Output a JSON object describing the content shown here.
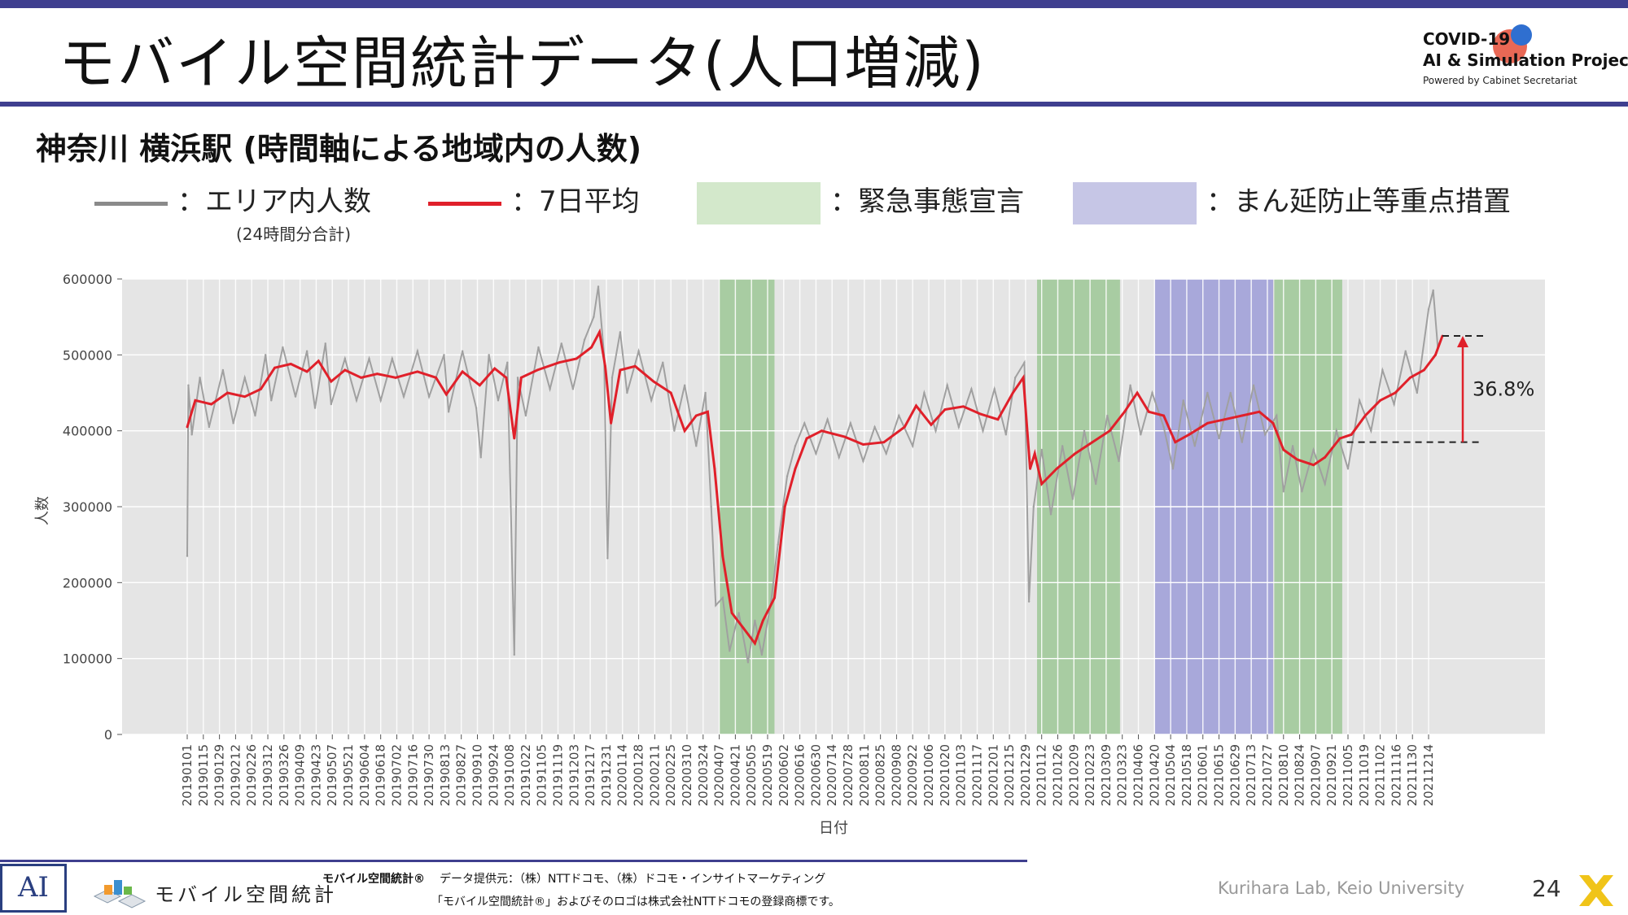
{
  "header": {
    "title": "モバイル空間統計データ(人口増減)",
    "logo": {
      "line1": "COVID-19",
      "line2": "AI & Simulation Project",
      "line3": "Powered by Cabinet Secretariat"
    }
  },
  "subtitle": "神奈川 横浜駅 (時間軸による地域内の人数)",
  "legend": {
    "daily_label": "：エリア内人数",
    "daily_sub": "(24時間分合計)",
    "avg_label": "：7日平均",
    "emergency_label": "：緊急事態宣言",
    "semi_label": "：まん延防止等重点措置"
  },
  "colors": {
    "header_bar": "#3f3f8f",
    "daily_line": "#a0a0a0",
    "avg_line": "#e0202a",
    "emergency_band": "#9dc896",
    "semi_band": "#9d9dd8",
    "plot_bg": "#e5e5e5",
    "grid": "#ffffff"
  },
  "chart_data": {
    "type": "line",
    "xlabel": "日付",
    "ylabel": "人数",
    "ylim": [
      0,
      600000
    ],
    "yticks": [
      0,
      100000,
      200000,
      300000,
      400000,
      500000,
      600000
    ],
    "ytick_labels": [
      "0",
      "100000",
      "200000",
      "300000",
      "400000",
      "500000",
      "600000"
    ],
    "x_start": "2019-01-01",
    "x_end": "2021-12-26",
    "xtick_labels": [
      "20190101",
      "20190115",
      "20190129",
      "20190212",
      "20190226",
      "20190312",
      "20190326",
      "20190409",
      "20190423",
      "20190507",
      "20190521",
      "20190604",
      "20190618",
      "20190702",
      "20190716",
      "20190730",
      "20190813",
      "20190827",
      "20190910",
      "20190924",
      "20191008",
      "20191022",
      "20191105",
      "20191119",
      "20191203",
      "20191217",
      "20191231",
      "20200114",
      "20200128",
      "20200211",
      "20200225",
      "20200310",
      "20200324",
      "20200407",
      "20200421",
      "20200505",
      "20200519",
      "20200602",
      "20200616",
      "20200630",
      "20200714",
      "20200728",
      "20200811",
      "20200825",
      "20200908",
      "20200922",
      "20201006",
      "20201020",
      "20201103",
      "20201117",
      "20201201",
      "20201215",
      "20201229",
      "20210112",
      "20210126",
      "20210209",
      "20210223",
      "20210309",
      "20210323",
      "20210406",
      "20210420",
      "20210504",
      "20210518",
      "20210601",
      "20210615",
      "20210629",
      "20210713",
      "20210727",
      "20210810",
      "20210824",
      "20210907",
      "20210921",
      "20211005",
      "20211019",
      "20211102",
      "20211116",
      "20211130",
      "20211214"
    ],
    "bands": [
      {
        "type": "emergency",
        "start": "2020-04-07",
        "end": "2020-05-25"
      },
      {
        "type": "emergency",
        "start": "2021-01-08",
        "end": "2021-03-21"
      },
      {
        "type": "semi",
        "start": "2021-04-20",
        "end": "2021-08-01"
      },
      {
        "type": "emergency",
        "start": "2021-08-02",
        "end": "2021-09-30"
      }
    ],
    "series": [
      {
        "name": "エリア内人数",
        "points": [
          [
            "2019-01-01",
            235000
          ],
          [
            "2019-01-02",
            460000
          ],
          [
            "2019-01-05",
            395000
          ],
          [
            "2019-01-12",
            470000
          ],
          [
            "2019-01-20",
            405000
          ],
          [
            "2019-02-01",
            480000
          ],
          [
            "2019-02-10",
            410000
          ],
          [
            "2019-02-20",
            470000
          ],
          [
            "2019-03-01",
            420000
          ],
          [
            "2019-03-10",
            500000
          ],
          [
            "2019-03-15",
            440000
          ],
          [
            "2019-03-25",
            510000
          ],
          [
            "2019-04-05",
            445000
          ],
          [
            "2019-04-15",
            505000
          ],
          [
            "2019-04-22",
            430000
          ],
          [
            "2019-05-01",
            515000
          ],
          [
            "2019-05-06",
            435000
          ],
          [
            "2019-05-18",
            495000
          ],
          [
            "2019-05-28",
            440000
          ],
          [
            "2019-06-08",
            495000
          ],
          [
            "2019-06-18",
            440000
          ],
          [
            "2019-06-28",
            495000
          ],
          [
            "2019-07-08",
            445000
          ],
          [
            "2019-07-20",
            505000
          ],
          [
            "2019-07-30",
            445000
          ],
          [
            "2019-08-12",
            500000
          ],
          [
            "2019-08-16",
            425000
          ],
          [
            "2019-08-28",
            505000
          ],
          [
            "2019-09-09",
            430000
          ],
          [
            "2019-09-13",
            365000
          ],
          [
            "2019-09-20",
            500000
          ],
          [
            "2019-09-28",
            440000
          ],
          [
            "2019-10-06",
            490000
          ],
          [
            "2019-10-12",
            105000
          ],
          [
            "2019-10-15",
            470000
          ],
          [
            "2019-10-22",
            420000
          ],
          [
            "2019-11-02",
            510000
          ],
          [
            "2019-11-12",
            455000
          ],
          [
            "2019-11-22",
            515000
          ],
          [
            "2019-12-02",
            455000
          ],
          [
            "2019-12-12",
            520000
          ],
          [
            "2019-12-20",
            550000
          ],
          [
            "2019-12-24",
            590000
          ],
          [
            "2019-12-29",
            500000
          ],
          [
            "2020-01-01",
            232000
          ],
          [
            "2020-01-05",
            470000
          ],
          [
            "2020-01-12",
            530000
          ],
          [
            "2020-01-18",
            450000
          ],
          [
            "2020-01-28",
            505000
          ],
          [
            "2020-02-08",
            440000
          ],
          [
            "2020-02-18",
            490000
          ],
          [
            "2020-02-28",
            400000
          ],
          [
            "2020-03-08",
            460000
          ],
          [
            "2020-03-18",
            380000
          ],
          [
            "2020-03-26",
            450000
          ],
          [
            "2020-03-31",
            300000
          ],
          [
            "2020-04-04",
            170000
          ],
          [
            "2020-04-10",
            180000
          ],
          [
            "2020-04-16",
            110000
          ],
          [
            "2020-04-24",
            160000
          ],
          [
            "2020-05-02",
            95000
          ],
          [
            "2020-05-08",
            150000
          ],
          [
            "2020-05-14",
            105000
          ],
          [
            "2020-05-22",
            175000
          ],
          [
            "2020-05-28",
            250000
          ],
          [
            "2020-06-05",
            340000
          ],
          [
            "2020-06-12",
            380000
          ],
          [
            "2020-06-20",
            410000
          ],
          [
            "2020-06-30",
            370000
          ],
          [
            "2020-07-10",
            415000
          ],
          [
            "2020-07-20",
            365000
          ],
          [
            "2020-07-30",
            410000
          ],
          [
            "2020-08-10",
            360000
          ],
          [
            "2020-08-20",
            405000
          ],
          [
            "2020-08-30",
            370000
          ],
          [
            "2020-09-10",
            420000
          ],
          [
            "2020-09-22",
            380000
          ],
          [
            "2020-10-02",
            450000
          ],
          [
            "2020-10-12",
            400000
          ],
          [
            "2020-10-22",
            460000
          ],
          [
            "2020-11-01",
            405000
          ],
          [
            "2020-11-12",
            455000
          ],
          [
            "2020-11-22",
            400000
          ],
          [
            "2020-12-02",
            455000
          ],
          [
            "2020-12-12",
            395000
          ],
          [
            "2020-12-20",
            470000
          ],
          [
            "2020-12-28",
            490000
          ],
          [
            "2021-01-01",
            175000
          ],
          [
            "2021-01-05",
            300000
          ],
          [
            "2021-01-12",
            375000
          ],
          [
            "2021-01-20",
            290000
          ],
          [
            "2021-01-30",
            380000
          ],
          [
            "2021-02-08",
            310000
          ],
          [
            "2021-02-18",
            400000
          ],
          [
            "2021-02-28",
            330000
          ],
          [
            "2021-03-10",
            420000
          ],
          [
            "2021-03-20",
            360000
          ],
          [
            "2021-03-30",
            460000
          ],
          [
            "2021-04-08",
            395000
          ],
          [
            "2021-04-18",
            450000
          ],
          [
            "2021-04-28",
            405000
          ],
          [
            "2021-05-06",
            350000
          ],
          [
            "2021-05-15",
            440000
          ],
          [
            "2021-05-25",
            380000
          ],
          [
            "2021-06-05",
            450000
          ],
          [
            "2021-06-15",
            390000
          ],
          [
            "2021-06-25",
            450000
          ],
          [
            "2021-07-05",
            385000
          ],
          [
            "2021-07-15",
            460000
          ],
          [
            "2021-07-25",
            395000
          ],
          [
            "2021-08-04",
            420000
          ],
          [
            "2021-08-10",
            320000
          ],
          [
            "2021-08-18",
            380000
          ],
          [
            "2021-08-26",
            320000
          ],
          [
            "2021-09-05",
            375000
          ],
          [
            "2021-09-15",
            330000
          ],
          [
            "2021-09-25",
            400000
          ],
          [
            "2021-10-05",
            350000
          ],
          [
            "2021-10-15",
            440000
          ],
          [
            "2021-10-25",
            400000
          ],
          [
            "2021-11-04",
            480000
          ],
          [
            "2021-11-14",
            435000
          ],
          [
            "2021-11-24",
            505000
          ],
          [
            "2021-12-04",
            450000
          ],
          [
            "2021-12-14",
            560000
          ],
          [
            "2021-12-18",
            585000
          ],
          [
            "2021-12-22",
            510000
          ],
          [
            "2021-12-26",
            525000
          ]
        ]
      },
      {
        "name": "7日平均",
        "points": [
          [
            "2019-01-01",
            405000
          ],
          [
            "2019-01-08",
            440000
          ],
          [
            "2019-01-22",
            435000
          ],
          [
            "2019-02-05",
            450000
          ],
          [
            "2019-02-20",
            445000
          ],
          [
            "2019-03-06",
            455000
          ],
          [
            "2019-03-18",
            483000
          ],
          [
            "2019-04-01",
            488000
          ],
          [
            "2019-04-15",
            478000
          ],
          [
            "2019-04-25",
            492000
          ],
          [
            "2019-05-06",
            465000
          ],
          [
            "2019-05-18",
            480000
          ],
          [
            "2019-06-01",
            470000
          ],
          [
            "2019-06-15",
            475000
          ],
          [
            "2019-07-01",
            470000
          ],
          [
            "2019-07-20",
            478000
          ],
          [
            "2019-08-05",
            470000
          ],
          [
            "2019-08-14",
            448000
          ],
          [
            "2019-08-28",
            478000
          ],
          [
            "2019-09-12",
            460000
          ],
          [
            "2019-09-25",
            482000
          ],
          [
            "2019-10-05",
            470000
          ],
          [
            "2019-10-12",
            390000
          ],
          [
            "2019-10-18",
            470000
          ],
          [
            "2019-11-01",
            480000
          ],
          [
            "2019-11-20",
            490000
          ],
          [
            "2019-12-05",
            495000
          ],
          [
            "2019-12-18",
            510000
          ],
          [
            "2019-12-25",
            530000
          ],
          [
            "2019-12-30",
            485000
          ],
          [
            "2020-01-04",
            410000
          ],
          [
            "2020-01-12",
            480000
          ],
          [
            "2020-01-25",
            485000
          ],
          [
            "2020-02-10",
            465000
          ],
          [
            "2020-02-25",
            450000
          ],
          [
            "2020-03-08",
            400000
          ],
          [
            "2020-03-18",
            420000
          ],
          [
            "2020-03-28",
            425000
          ],
          [
            "2020-04-03",
            350000
          ],
          [
            "2020-04-10",
            235000
          ],
          [
            "2020-04-18",
            160000
          ],
          [
            "2020-04-28",
            140000
          ],
          [
            "2020-05-08",
            120000
          ],
          [
            "2020-05-15",
            150000
          ],
          [
            "2020-05-25",
            180000
          ],
          [
            "2020-06-03",
            300000
          ],
          [
            "2020-06-12",
            350000
          ],
          [
            "2020-06-22",
            390000
          ],
          [
            "2020-07-05",
            400000
          ],
          [
            "2020-07-25",
            392000
          ],
          [
            "2020-08-10",
            382000
          ],
          [
            "2020-08-28",
            385000
          ],
          [
            "2020-09-15",
            405000
          ],
          [
            "2020-09-25",
            433000
          ],
          [
            "2020-10-08",
            408000
          ],
          [
            "2020-10-20",
            428000
          ],
          [
            "2020-11-05",
            432000
          ],
          [
            "2020-11-20",
            422000
          ],
          [
            "2020-12-05",
            415000
          ],
          [
            "2020-12-18",
            450000
          ],
          [
            "2020-12-27",
            470000
          ],
          [
            "2021-01-02",
            350000
          ],
          [
            "2021-01-06",
            370000
          ],
          [
            "2021-01-12",
            330000
          ],
          [
            "2021-01-25",
            350000
          ],
          [
            "2021-02-10",
            370000
          ],
          [
            "2021-02-25",
            385000
          ],
          [
            "2021-03-12",
            400000
          ],
          [
            "2021-03-25",
            425000
          ],
          [
            "2021-04-05",
            450000
          ],
          [
            "2021-04-15",
            425000
          ],
          [
            "2021-04-28",
            420000
          ],
          [
            "2021-05-08",
            385000
          ],
          [
            "2021-05-20",
            395000
          ],
          [
            "2021-06-05",
            410000
          ],
          [
            "2021-06-20",
            415000
          ],
          [
            "2021-07-05",
            420000
          ],
          [
            "2021-07-20",
            425000
          ],
          [
            "2021-08-01",
            410000
          ],
          [
            "2021-08-10",
            375000
          ],
          [
            "2021-08-22",
            362000
          ],
          [
            "2021-09-05",
            355000
          ],
          [
            "2021-09-15",
            365000
          ],
          [
            "2021-09-28",
            390000
          ],
          [
            "2021-10-08",
            395000
          ],
          [
            "2021-10-20",
            420000
          ],
          [
            "2021-11-02",
            440000
          ],
          [
            "2021-11-15",
            450000
          ],
          [
            "2021-11-28",
            470000
          ],
          [
            "2021-12-10",
            480000
          ],
          [
            "2021-12-20",
            500000
          ],
          [
            "2021-12-26",
            525000
          ]
        ]
      }
    ],
    "annotation": {
      "text": "36.8%",
      "from": [
        "2021-10-04",
        385000
      ],
      "to": [
        "2021-12-26",
        525000
      ]
    }
  },
  "footer": {
    "logo_text": "AI",
    "mobile_brand": "モバイル空間統計",
    "credit_bold": "モバイル空間統計®",
    "credit_text": "データ提供元：（株）NTTドコモ、（株）ドコモ・インサイトマーケティング",
    "trademark": "「モバイル空間統計®」およびそのロゴは株式会社NTTドコモの登録商標です。",
    "lab": "Kurihara Lab, Keio University",
    "page": "24"
  }
}
